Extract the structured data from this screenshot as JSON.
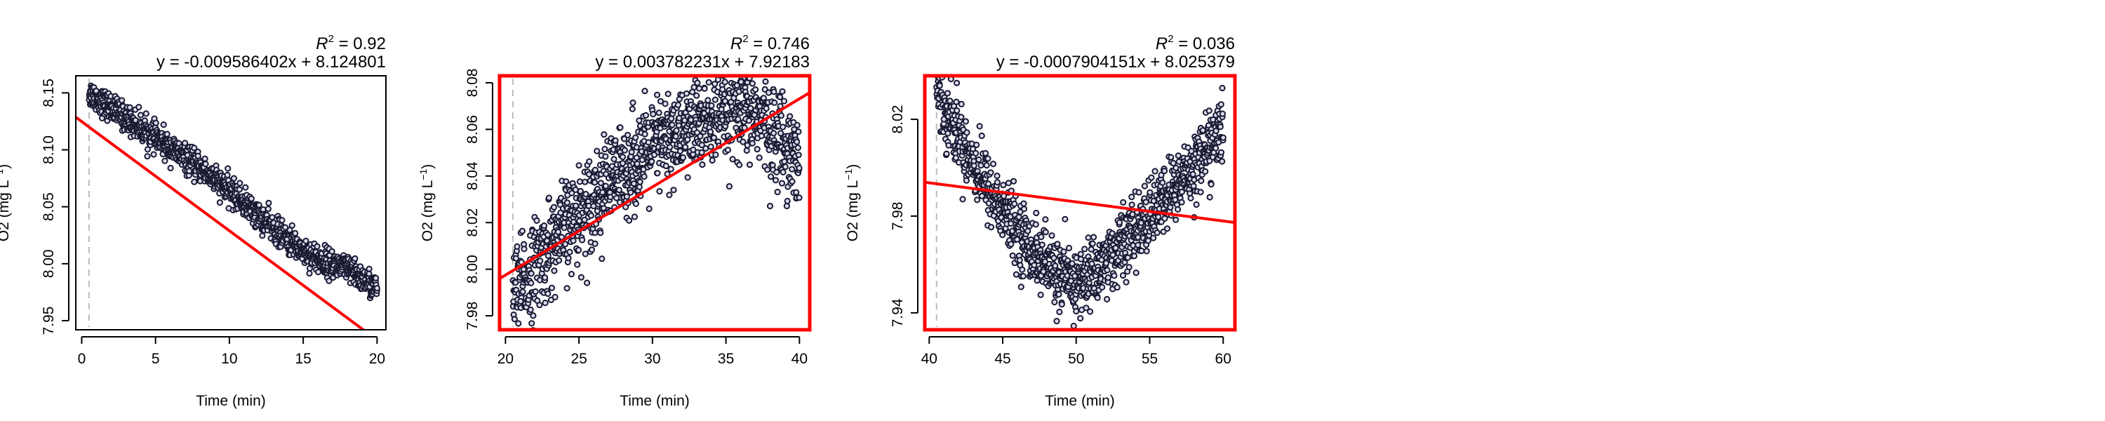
{
  "colors": {
    "points": "#1a1a33",
    "point_fill": "#dcdcf0",
    "fit_line": "#ff0000",
    "highlight_frame": "#ff0000",
    "vline": "#bbbbbb",
    "axis": "#000000"
  },
  "chart_data": [
    {
      "type": "scatter",
      "xlabel": "Time (min)",
      "ylabel": "O2 (mg L",
      "ylabel_sup": "−1",
      "ylabel_close": ")",
      "r2_label": "R",
      "r2_value": "= 0.92",
      "equation": "y = -0.009586402x + 8.124801",
      "xlim": [
        -0.4,
        20.6
      ],
      "ylim": [
        7.942,
        8.165
      ],
      "xticks": [
        0,
        5,
        10,
        15,
        20
      ],
      "xtick_labels": [
        "0",
        "5",
        "10",
        "15",
        "20"
      ],
      "yticks": [
        7.95,
        8.0,
        8.05,
        8.1,
        8.15
      ],
      "ytick_labels": [
        "7.95",
        "8.00",
        "8.05",
        "8.10",
        "8.15"
      ],
      "vline_x": 0.5,
      "fit": {
        "slope": -0.009586402,
        "intercept": 8.124801
      },
      "highlighted": false,
      "trend": "linear",
      "trend_params": {
        "x0": 0.5,
        "x1": 20,
        "y0": 8.15,
        "y1": 7.978,
        "noise": 0.006
      },
      "x_range": [
        0.5,
        20
      ]
    },
    {
      "type": "scatter",
      "xlabel": "Time (min)",
      "ylabel": "O2 (mg L",
      "ylabel_sup": "−1",
      "ylabel_close": ")",
      "r2_label": "R",
      "r2_value": "= 0.746",
      "equation": "y = 0.003782231x + 7.92183",
      "xlim": [
        19.6,
        40.7
      ],
      "ylim": [
        7.974,
        8.083
      ],
      "xticks": [
        20,
        25,
        30,
        35,
        40
      ],
      "xtick_labels": [
        "20",
        "25",
        "30",
        "35",
        "40"
      ],
      "yticks": [
        7.98,
        8.0,
        8.02,
        8.04,
        8.06,
        8.08
      ],
      "ytick_labels": [
        "7.98",
        "8.00",
        "8.02",
        "8.04",
        "8.06",
        "8.08"
      ],
      "vline_x": 20.5,
      "fit": {
        "slope": 0.003782231,
        "intercept": 7.92183
      },
      "highlighted": true,
      "trend": "rise",
      "trend_params": {
        "x0": 20.5,
        "x1": 40,
        "y0": 7.988,
        "y1": 8.066,
        "noise": 0.01
      },
      "x_range": [
        20.5,
        40
      ]
    },
    {
      "type": "scatter",
      "xlabel": "Time (min)",
      "ylabel": "O2 (mg L",
      "ylabel_sup": "−1",
      "ylabel_close": ")",
      "r2_label": "R",
      "r2_value": "= 0.036",
      "equation": "y = -0.0007904151x + 8.025379",
      "xlim": [
        39.7,
        60.8
      ],
      "ylim": [
        7.933,
        8.038
      ],
      "xticks": [
        40,
        45,
        50,
        55,
        60
      ],
      "xtick_labels": [
        "40",
        "45",
        "50",
        "55",
        "60"
      ],
      "yticks": [
        7.94,
        7.98,
        8.02
      ],
      "ytick_labels": [
        "7.94",
        "7.98",
        "8.02"
      ],
      "vline_x": 40.5,
      "fit": {
        "slope": -0.0007904151,
        "intercept": 8.025379
      },
      "highlighted": true,
      "trend": "valley",
      "trend_params": {
        "x0": 40.5,
        "x1": 60,
        "y0": 8.032,
        "ymin": 7.952,
        "xmin": 50,
        "y1": 8.016,
        "noise": 0.007
      },
      "x_range": [
        40.5,
        60
      ]
    }
  ]
}
